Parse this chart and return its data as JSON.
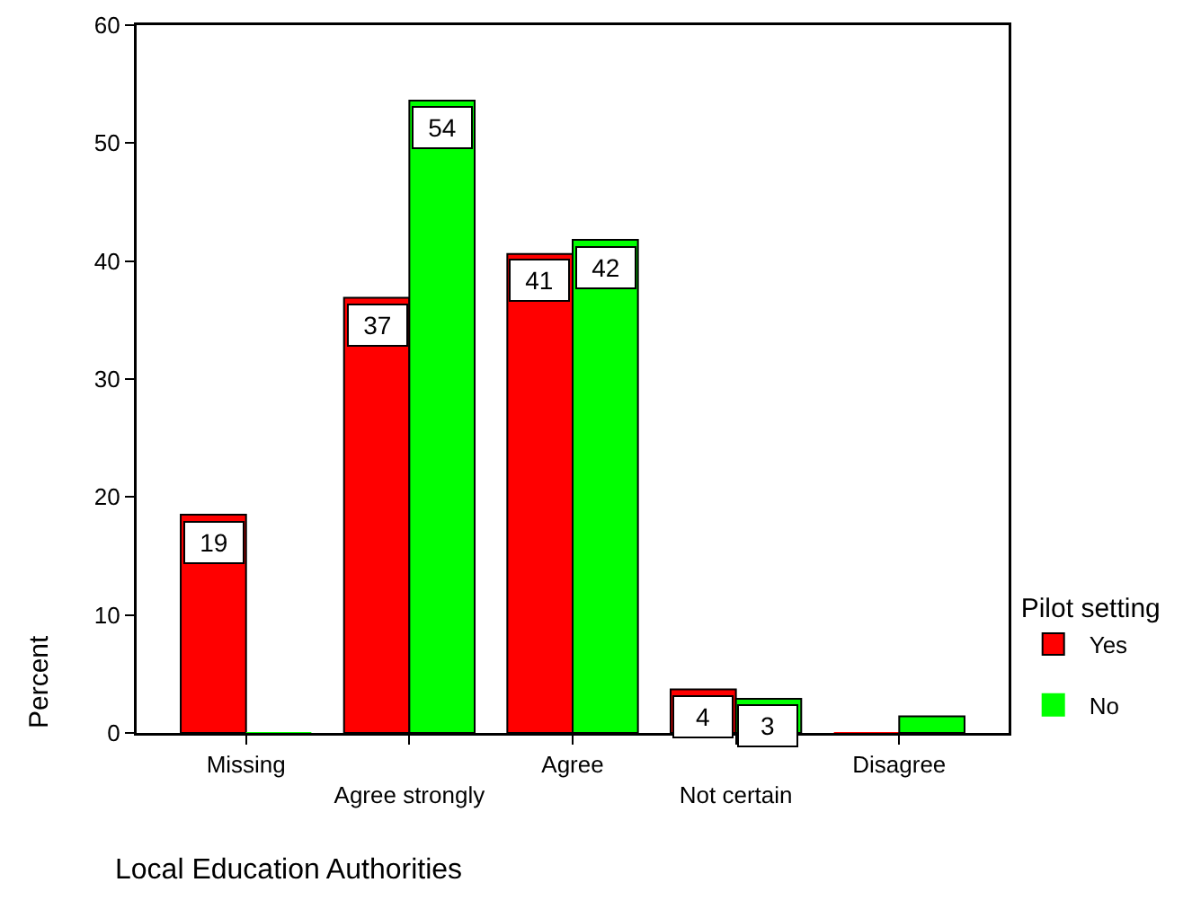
{
  "chart_data": {
    "type": "bar",
    "xlabel": "Local Education Authorities",
    "ylabel": "Percent",
    "legend_title": "Pilot setting",
    "categories": [
      "Missing",
      "Agree strongly",
      "Agree",
      "Not certain",
      "Disagree"
    ],
    "series": [
      {
        "name": "Yes",
        "color": "#ff0000",
        "values": [
          18.5,
          36.9,
          40.6,
          3.7,
          0
        ],
        "value_labels": [
          "19",
          "37",
          "41",
          "4",
          null
        ]
      },
      {
        "name": "No",
        "color": "#00ff00",
        "values": [
          0,
          53.6,
          41.8,
          2.9,
          1.4
        ],
        "value_labels": [
          null,
          "54",
          "42",
          "3",
          null
        ]
      }
    ],
    "ylim": [
      0,
      60
    ],
    "yticks": [
      0,
      10,
      20,
      30,
      40,
      50,
      60
    ],
    "grid": false,
    "legend": "bottom right"
  }
}
